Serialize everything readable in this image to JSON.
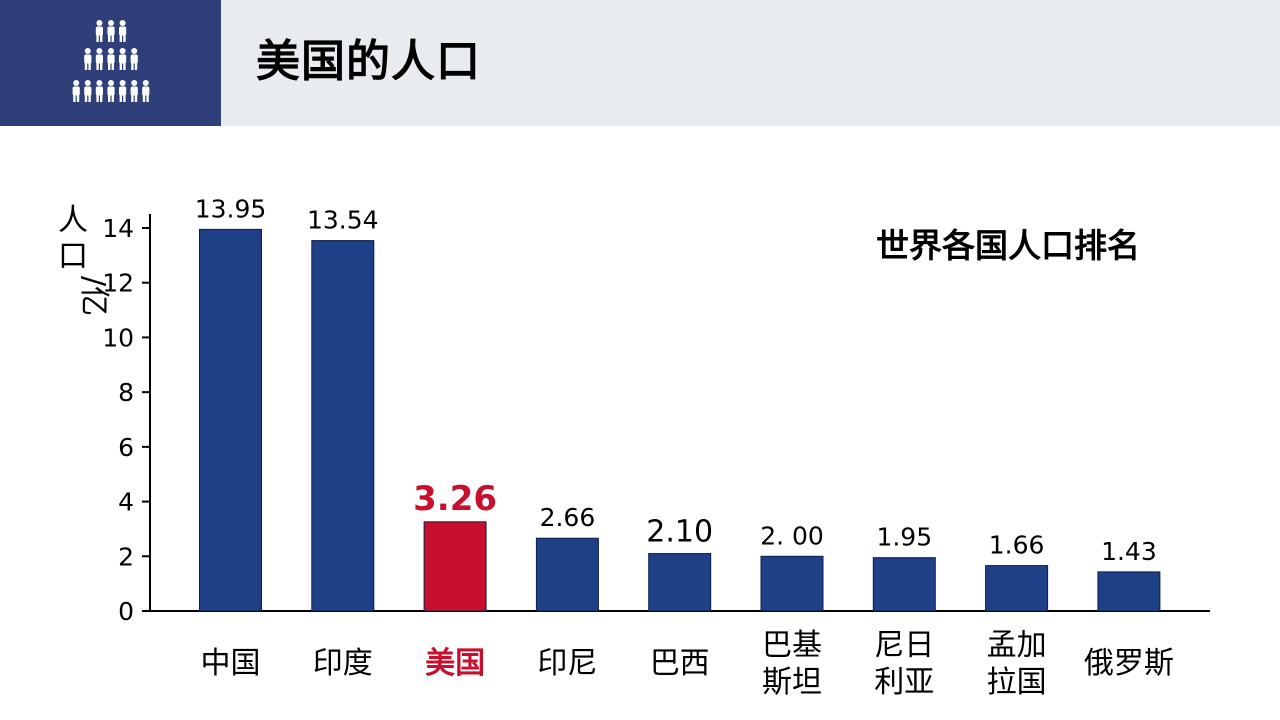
{
  "header": {
    "title": "美国的人口",
    "icon": "population-pyramid-icon"
  },
  "colors": {
    "bar": "#1f3f87",
    "highlight": "#c8102e",
    "header_bg": "#e8ebef",
    "logo_bg": "#2f3f7a"
  },
  "chart_data": {
    "type": "bar",
    "title": "世界各国人口排名",
    "ylabel": "人口/亿",
    "ylabel_chars": [
      "人",
      "口",
      "/亿"
    ],
    "ylim": [
      0,
      14
    ],
    "yticks": [
      0,
      2,
      4,
      6,
      8,
      10,
      12,
      14
    ],
    "ytick_labels": [
      "0",
      "2",
      "4",
      "6",
      "8",
      "10",
      "12",
      "14"
    ],
    "categories": [
      "中国",
      "印度",
      "美国",
      "印尼",
      "巴西",
      "巴基斯坦",
      "尼日利亚",
      "孟加拉国",
      "俄罗斯"
    ],
    "category_lines": [
      [
        "中国"
      ],
      [
        "印度"
      ],
      [
        "美国"
      ],
      [
        "印尼"
      ],
      [
        "巴西"
      ],
      [
        "巴基",
        "斯坦"
      ],
      [
        "尼日",
        "利亚"
      ],
      [
        "孟加",
        "拉国"
      ],
      [
        "俄罗斯"
      ]
    ],
    "values": [
      13.95,
      13.54,
      3.26,
      2.66,
      2.1,
      2.0,
      1.95,
      1.66,
      1.43
    ],
    "value_labels": [
      "13.95",
      "13.54",
      "3.26",
      "2.66",
      "2.10",
      "2. 00",
      "1.95",
      "1.66",
      "1.43"
    ],
    "highlight_index": 2,
    "grid": false,
    "legend": "none"
  }
}
